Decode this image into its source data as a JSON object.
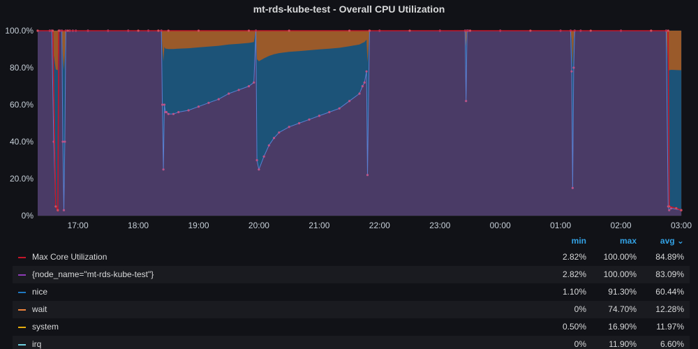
{
  "panel": {
    "title": "mt-rds-kube-test - Overall CPU Utilization"
  },
  "legend": {
    "headers": {
      "min": "min",
      "max": "max",
      "avg": "avg ⌄"
    },
    "rows": [
      {
        "name": "Max Core Utilization",
        "color": "#c4162a",
        "min": "2.82%",
        "max": "100.00%",
        "avg": "84.89%"
      },
      {
        "name": "{node_name=\"mt-rds-kube-test\"}",
        "color": "#8f3bb8",
        "min": "2.82%",
        "max": "100.00%",
        "avg": "83.09%"
      },
      {
        "name": "nice",
        "color": "#1f78c1",
        "min": "1.10%",
        "max": "91.30%",
        "avg": "60.44%"
      },
      {
        "name": "wait",
        "color": "#ef843c",
        "min": "0%",
        "max": "74.70%",
        "avg": "12.28%"
      },
      {
        "name": "system",
        "color": "#e5ac0e",
        "min": "0.50%",
        "max": "16.90%",
        "avg": "11.97%"
      },
      {
        "name": "irq",
        "color": "#6ed0e0",
        "min": "0%",
        "max": "11.90%",
        "avg": "6.60%"
      }
    ]
  },
  "chart_data": {
    "type": "area",
    "title": "mt-rds-kube-test - Overall CPU Utilization",
    "xlabel": "",
    "ylabel": "",
    "x_ticks": [
      "17:00",
      "18:00",
      "19:00",
      "20:00",
      "21:00",
      "22:00",
      "23:00",
      "00:00",
      "01:00",
      "02:00",
      "03:00"
    ],
    "y_ticks": [
      "0%",
      "20.0%",
      "40.0%",
      "60.0%",
      "80.0%",
      "100.0%"
    ],
    "ylim": [
      0,
      100
    ],
    "x_range": [
      "16:20",
      "03:00"
    ],
    "grid": true,
    "colors": {
      "background": "#111217",
      "grid": "#2c2d33",
      "max_core": "#c4162a",
      "node": "#8f3bb8",
      "node_fill": "#4a3b66",
      "nice_fill": "#1c5378",
      "wait_fill": "#9a5a2a",
      "system": "#e5ac0e",
      "points": "#b9548a"
    },
    "series": [
      {
        "name": "{node_name=\"mt-rds-kube-test\"}",
        "x": [
          "16:20",
          "16:32",
          "16:34",
          "16:36",
          "16:38",
          "16:40",
          "16:41",
          "16:42",
          "16:44",
          "16:45",
          "16:46",
          "16:47",
          "16:48",
          "16:52",
          "16:55",
          "16:58",
          "17:10",
          "17:30",
          "17:50",
          "18:10",
          "18:20",
          "18:23",
          "18:24",
          "18:25",
          "18:26",
          "18:27",
          "18:28",
          "18:30",
          "18:35",
          "18:40",
          "18:50",
          "19:00",
          "19:10",
          "19:20",
          "19:30",
          "19:40",
          "19:50",
          "19:55",
          "19:57",
          "19:58",
          "20:00",
          "20:05",
          "20:10",
          "20:15",
          "20:20",
          "20:30",
          "20:40",
          "20:50",
          "21:00",
          "21:10",
          "21:20",
          "21:30",
          "21:40",
          "21:43",
          "21:45",
          "21:47",
          "21:48",
          "21:50",
          "22:00",
          "23:00",
          "23:25",
          "23:26",
          "23:27",
          "23:28",
          "23:30",
          "00:00",
          "01:00",
          "01:10",
          "01:11",
          "01:12",
          "01:13",
          "01:14",
          "01:20",
          "02:00",
          "02:30",
          "02:45",
          "02:47",
          "02:48",
          "02:50",
          "03:00"
        ],
        "y": [
          100,
          100,
          100,
          40,
          5,
          3,
          100,
          100,
          100,
          40,
          3,
          40,
          100,
          100,
          100,
          100,
          100,
          100,
          100,
          100,
          100,
          100,
          60,
          25,
          60,
          56,
          56,
          55,
          55,
          56,
          57,
          59,
          61,
          63,
          66,
          68,
          70,
          72,
          100,
          30,
          25,
          32,
          38,
          42,
          45,
          48,
          50,
          52,
          54,
          56,
          58,
          62,
          66,
          70,
          72,
          78,
          22,
          100,
          100,
          100,
          100,
          62,
          100,
          100,
          100,
          100,
          100,
          100,
          78,
          15,
          80,
          100,
          100,
          100,
          100,
          100,
          5,
          3,
          4,
          3
        ]
      },
      {
        "name": "Max Core Utilization",
        "x": [
          "16:20",
          "16:35",
          "16:38",
          "16:40",
          "16:41",
          "16:50",
          "18:00",
          "18:20",
          "18:30",
          "19:00",
          "19:50",
          "20:30",
          "21:30",
          "21:50",
          "22:30",
          "23:30",
          "00:30",
          "01:30",
          "02:30",
          "02:47",
          "02:48",
          "02:55",
          "03:00"
        ],
        "y": [
          100,
          100,
          5,
          3,
          100,
          100,
          100,
          100,
          100,
          100,
          100,
          100,
          100,
          100,
          100,
          100,
          100,
          100,
          100,
          100,
          5,
          4,
          3
        ]
      }
    ]
  }
}
